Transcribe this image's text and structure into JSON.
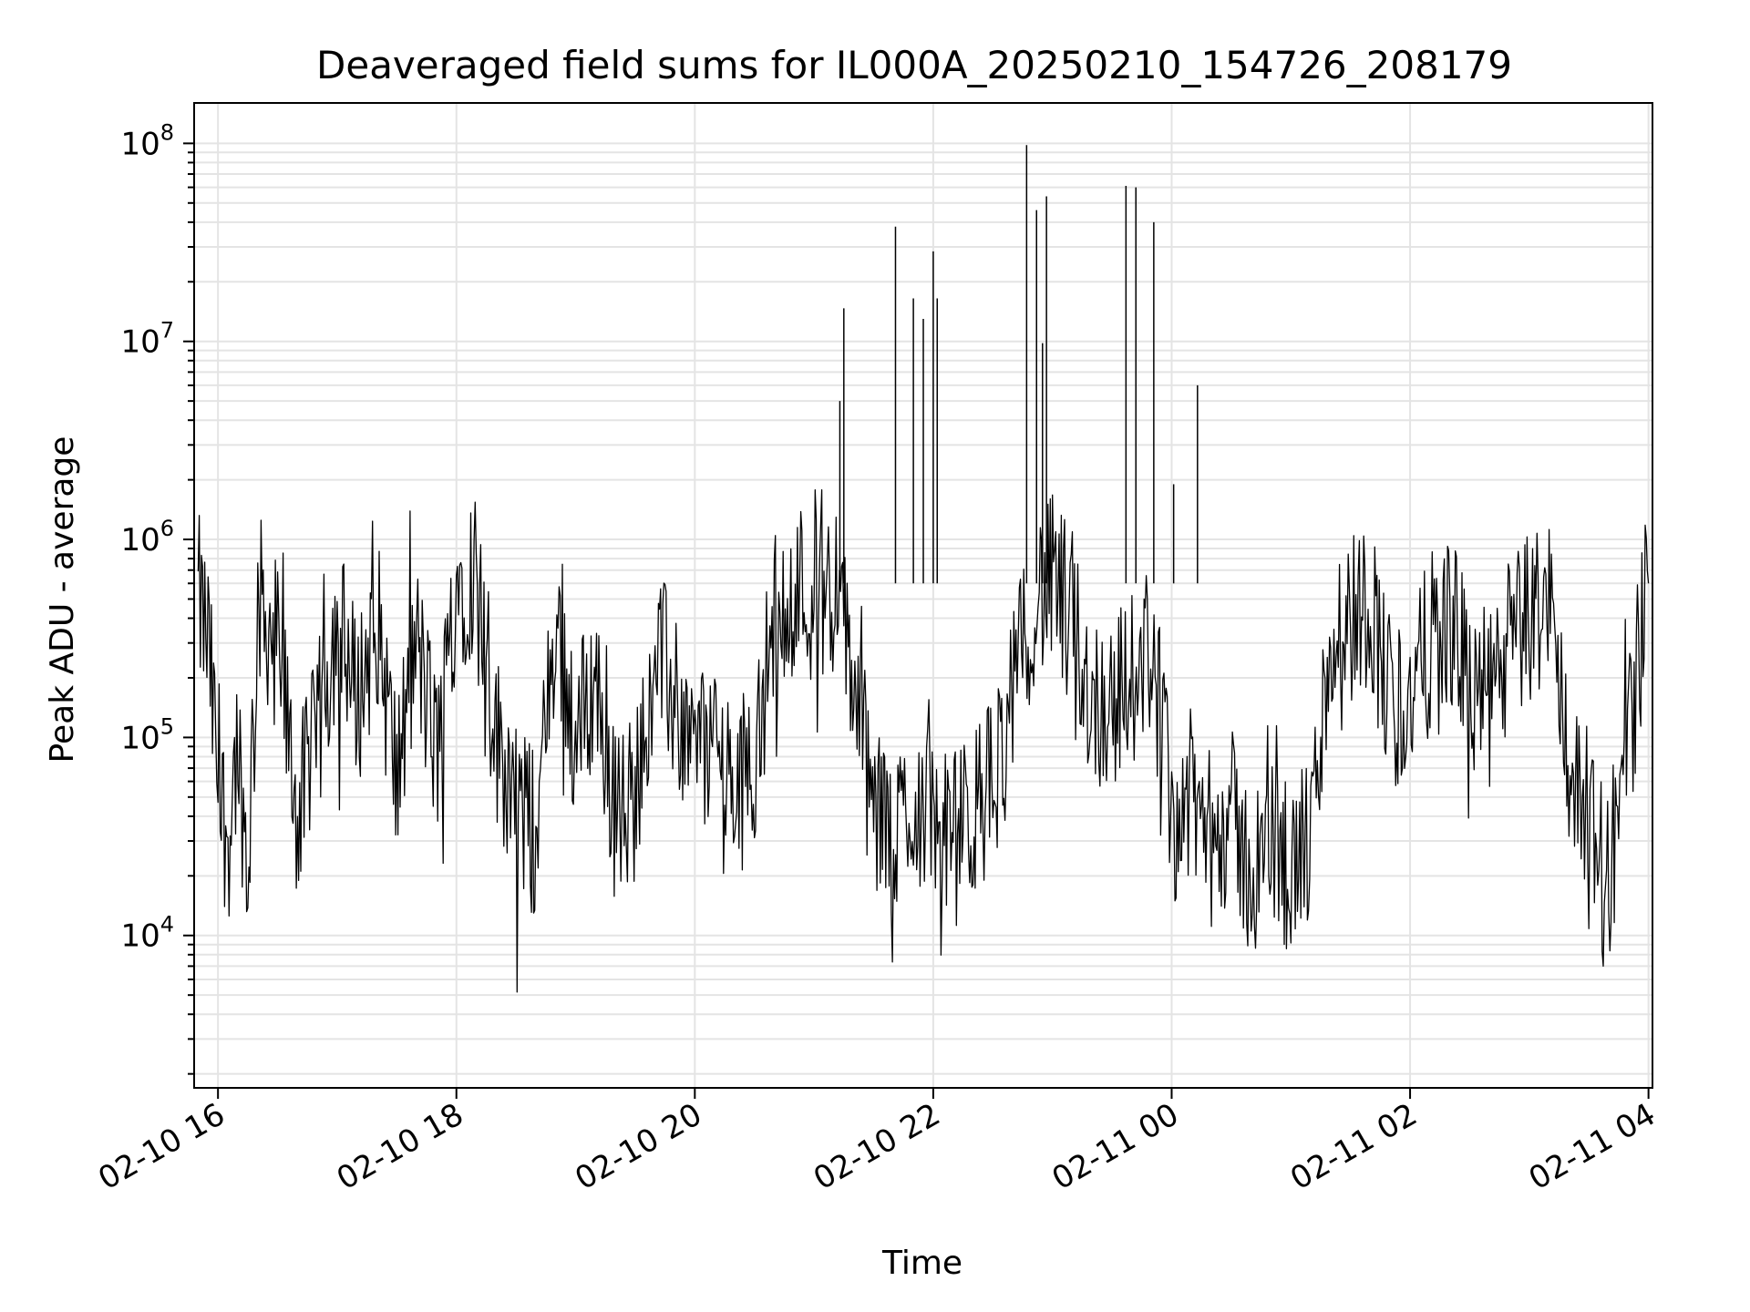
{
  "chart_data": {
    "type": "line",
    "title": "Deaveraged field sums for IL000A_20250210_154726_208179",
    "xlabel": "Time",
    "ylabel": "Peak ADU - average",
    "x_scale": "time",
    "y_scale": "log",
    "xlim": [
      "2025-02-10 15:48",
      "2025-02-11 04:02"
    ],
    "ylim": [
      1700,
      160000000
    ],
    "x_ticks": [
      {
        "value": "2025-02-10 16:00",
        "label": "02-10 16"
      },
      {
        "value": "2025-02-10 18:00",
        "label": "02-10 18"
      },
      {
        "value": "2025-02-10 20:00",
        "label": "02-10 20"
      },
      {
        "value": "2025-02-10 22:00",
        "label": "02-10 22"
      },
      {
        "value": "2025-02-11 00:00",
        "label": "02-11 00"
      },
      {
        "value": "2025-02-11 02:00",
        "label": "02-11 02"
      },
      {
        "value": "2025-02-11 04:00",
        "label": "02-11 04"
      }
    ],
    "y_ticks": [
      {
        "value": 10000,
        "base": "10",
        "exp": "4"
      },
      {
        "value": 100000,
        "base": "10",
        "exp": "5"
      },
      {
        "value": 1000000,
        "base": "10",
        "exp": "6"
      },
      {
        "value": 10000000,
        "base": "10",
        "exp": "7"
      },
      {
        "value": 100000000,
        "base": "10",
        "exp": "8"
      }
    ],
    "grid": true,
    "line_color": "#000000",
    "series": [
      {
        "x": [
          "2025-02-10 15:50",
          "2025-02-10 15:55",
          "2025-02-10 16:00",
          "2025-02-10 16:05",
          "2025-02-10 16:10",
          "2025-02-10 16:15",
          "2025-02-10 16:20",
          "2025-02-10 16:30",
          "2025-02-10 16:40",
          "2025-02-10 16:50",
          "2025-02-10 17:00",
          "2025-02-10 17:10",
          "2025-02-10 17:20",
          "2025-02-10 17:30",
          "2025-02-10 17:40",
          "2025-02-10 17:50",
          "2025-02-10 18:00",
          "2025-02-10 18:10",
          "2025-02-10 18:20",
          "2025-02-10 18:30",
          "2025-02-10 18:40",
          "2025-02-10 18:50",
          "2025-02-10 19:00",
          "2025-02-10 19:10",
          "2025-02-10 19:20",
          "2025-02-10 19:30",
          "2025-02-10 19:40",
          "2025-02-10 19:50",
          "2025-02-10 20:00",
          "2025-02-10 20:10",
          "2025-02-10 20:20",
          "2025-02-10 20:30",
          "2025-02-10 20:40",
          "2025-02-10 20:50",
          "2025-02-10 21:00",
          "2025-02-10 21:10",
          "2025-02-10 21:20",
          "2025-02-10 21:30",
          "2025-02-10 21:40",
          "2025-02-10 21:50",
          "2025-02-10 22:00",
          "2025-02-10 22:10",
          "2025-02-10 22:20",
          "2025-02-10 22:30",
          "2025-02-10 22:40",
          "2025-02-10 22:50",
          "2025-02-10 23:00",
          "2025-02-10 23:10",
          "2025-02-10 23:20",
          "2025-02-10 23:30",
          "2025-02-10 23:40",
          "2025-02-10 23:50",
          "2025-02-11 00:00",
          "2025-02-11 00:10",
          "2025-02-11 00:20",
          "2025-02-11 00:30",
          "2025-02-11 00:40",
          "2025-02-11 00:50",
          "2025-02-11 01:00",
          "2025-02-11 01:10",
          "2025-02-11 01:20",
          "2025-02-11 01:30",
          "2025-02-11 01:40",
          "2025-02-11 01:50",
          "2025-02-11 02:00",
          "2025-02-11 02:10",
          "2025-02-11 02:20",
          "2025-02-11 02:30",
          "2025-02-11 02:40",
          "2025-02-11 02:50",
          "2025-02-11 03:00",
          "2025-02-11 03:10",
          "2025-02-11 03:20",
          "2025-02-11 03:30",
          "2025-02-11 03:40",
          "2025-02-11 03:50",
          "2025-02-11 04:00"
        ],
        "values": [
          500000,
          300000,
          60000,
          30000,
          100000,
          20000,
          500000,
          300000,
          40000,
          100000,
          400000,
          150000,
          400000,
          60000,
          300000,
          80000,
          600000,
          700000,
          100000,
          50000,
          30000,
          400000,
          100000,
          200000,
          40000,
          50000,
          300000,
          150000,
          80000,
          100000,
          50000,
          80000,
          400000,
          600000,
          500000,
          600000,
          200000,
          40000,
          30000,
          50000,
          40000,
          30000,
          40000,
          60000,
          150000,
          500000,
          600000,
          400000,
          150000,
          150000,
          200000,
          300000,
          40000,
          50000,
          30000,
          40000,
          20000,
          30000,
          20000,
          30000,
          300000,
          400000,
          500000,
          150000,
          150000,
          300000,
          400000,
          200000,
          150000,
          300000,
          400000,
          500000,
          80000,
          30000,
          20000,
          100000,
          600000
        ]
      }
    ],
    "spikes": [
      {
        "x": "2025-02-10 21:13",
        "value": 5000000
      },
      {
        "x": "2025-02-10 21:15",
        "value": 14700000
      },
      {
        "x": "2025-02-10 21:41",
        "value": 38000000
      },
      {
        "x": "2025-02-10 21:50",
        "value": 16500000
      },
      {
        "x": "2025-02-10 21:55",
        "value": 13000000
      },
      {
        "x": "2025-02-10 22:00",
        "value": 28500000
      },
      {
        "x": "2025-02-10 22:02",
        "value": 16500000
      },
      {
        "x": "2025-02-10 22:47",
        "value": 98000000
      },
      {
        "x": "2025-02-10 22:52",
        "value": 46000000
      },
      {
        "x": "2025-02-10 22:57",
        "value": 54000000
      },
      {
        "x": "2025-02-10 22:55",
        "value": 9800000
      },
      {
        "x": "2025-02-10 23:37",
        "value": 61000000
      },
      {
        "x": "2025-02-10 23:42",
        "value": 60000000
      },
      {
        "x": "2025-02-10 23:51",
        "value": 40000000
      },
      {
        "x": "2025-02-11 00:01",
        "value": 1900000
      },
      {
        "x": "2025-02-11 00:13",
        "value": 6000000
      }
    ]
  }
}
